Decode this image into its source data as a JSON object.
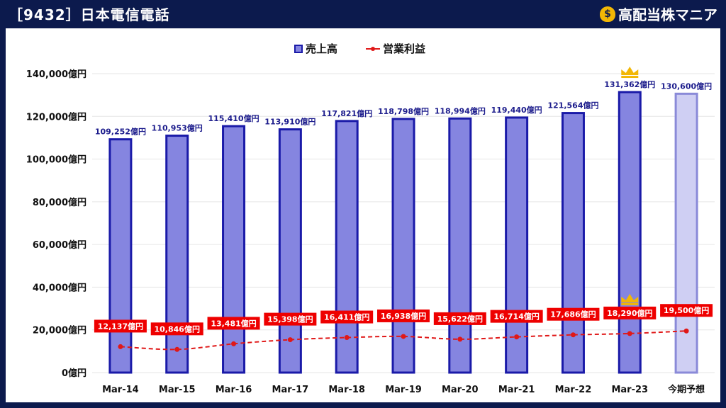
{
  "header": {
    "title": "［9432］日本電信電話",
    "brand": "高配当株マニア",
    "brand_icon": "money-bag-icon"
  },
  "colors": {
    "background": "#0c1a4d",
    "bar_fill": "#8585e0",
    "bar_stroke": "#1a1aa8",
    "forecast_fill": "#cfcff3",
    "forecast_stroke": "#8a8ad8",
    "line": "#e01818",
    "label_box": "#ee0000",
    "crown": "#f2b705"
  },
  "chart_data": {
    "type": "bar",
    "categories": [
      "Mar-14",
      "Mar-15",
      "Mar-16",
      "Mar-17",
      "Mar-18",
      "Mar-19",
      "Mar-20",
      "Mar-21",
      "Mar-22",
      "Mar-23",
      "今期予想"
    ],
    "series": [
      {
        "name": "売上高",
        "type": "bar",
        "values": [
          109252,
          110953,
          115410,
          113910,
          117821,
          118798,
          118994,
          119440,
          121564,
          131362,
          130600
        ],
        "labels": [
          "109,252億円",
          "110,953億円",
          "115,410億円",
          "113,910億円",
          "117,821億円",
          "118,798億円",
          "118,994億円",
          "119,440億円",
          "121,564億円",
          "131,362億円",
          "130,600億円"
        ]
      },
      {
        "name": "営業利益",
        "type": "line",
        "values": [
          12137,
          10846,
          13481,
          15398,
          16411,
          16938,
          15622,
          16714,
          17686,
          18290,
          19500
        ],
        "labels": [
          "12,137億円",
          "10,846億円",
          "13,481億円",
          "15,398億円",
          "16,411億円",
          "16,938億円",
          "15,622億円",
          "16,714億円",
          "17,686億円",
          "18,290億円",
          "19,500億円"
        ]
      }
    ],
    "forecast_index": 10,
    "crown_index": 9,
    "ylim": [
      0,
      140000
    ],
    "yticks": [
      0,
      20000,
      40000,
      60000,
      80000,
      100000,
      120000,
      140000
    ],
    "ytick_labels": [
      "0億円",
      "20,000億円",
      "40,000億円",
      "60,000億円",
      "80,000億円",
      "100,000億円",
      "120,000億円",
      "140,000億円"
    ],
    "grid": true,
    "legend_position": "top-center"
  }
}
